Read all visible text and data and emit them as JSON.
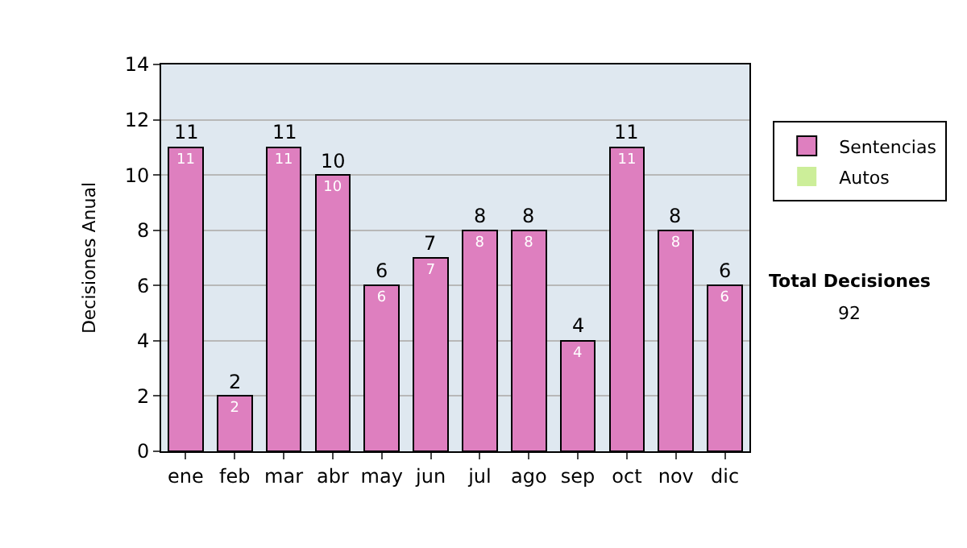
{
  "chart_data": {
    "type": "bar",
    "stacked": true,
    "ylabel": "Decisiones Anual",
    "categories": [
      "ene",
      "feb",
      "mar",
      "abr",
      "may",
      "jun",
      "jul",
      "ago",
      "sep",
      "oct",
      "nov",
      "dic"
    ],
    "series": [
      {
        "name": "Sentencias",
        "color": "#de7fbf",
        "values": [
          11,
          2,
          11,
          10,
          6,
          7,
          8,
          8,
          4,
          11,
          8,
          6
        ],
        "value_labels": [
          "11",
          "2",
          "11",
          "10",
          "6",
          "7",
          "8",
          "8",
          "4",
          "11",
          "8",
          "6"
        ]
      },
      {
        "name": "Autos",
        "color": "#ccee99",
        "values": [
          0,
          0,
          0,
          0,
          0,
          0,
          0,
          0,
          0,
          0,
          0,
          0
        ]
      }
    ],
    "totals": [
      "11",
      "2",
      "11",
      "10",
      "6",
      "7",
      "8",
      "8",
      "4",
      "11",
      "8",
      "6"
    ],
    "ylim": [
      0,
      14
    ],
    "yticks": [
      0,
      2,
      4,
      6,
      8,
      10,
      12,
      14
    ],
    "grid": "y",
    "legend": "right",
    "annotations": [
      "Total Decisiones",
      "92"
    ]
  }
}
